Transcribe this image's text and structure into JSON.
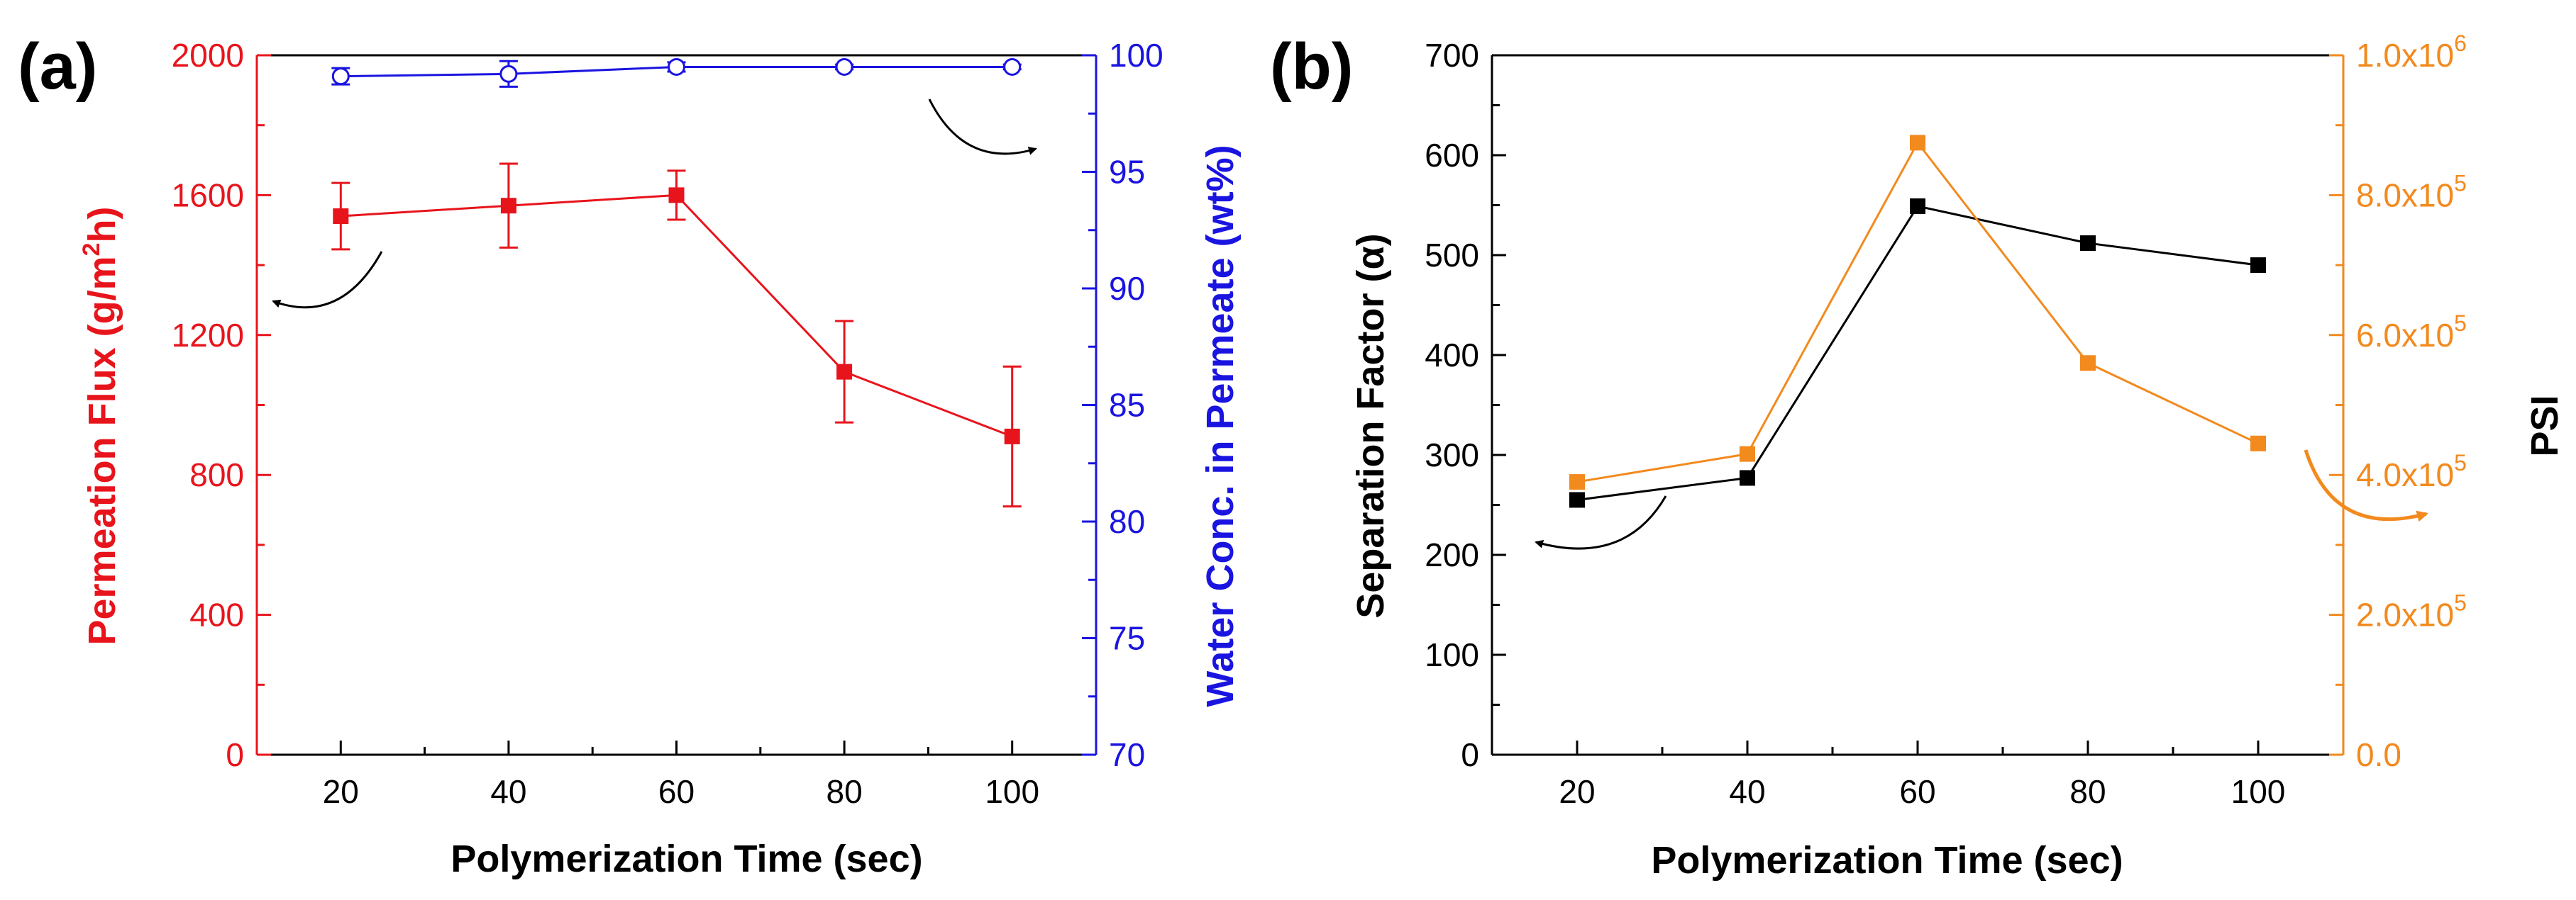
{
  "chart_data": [
    {
      "type": "line",
      "panel_label": "(a)",
      "xlabel": "Polymerization Time (sec)",
      "ylabel_left_parts": [
        "Permeation Flux (g/m",
        "2",
        "h)"
      ],
      "ylabel_right": "Water Conc. in Permeate (wt%)",
      "xlim": [
        10,
        110
      ],
      "xticks": [
        20,
        40,
        60,
        80,
        100
      ],
      "ylim_left": [
        0,
        2000
      ],
      "yticks_left": [
        0,
        400,
        800,
        1200,
        1600,
        2000
      ],
      "ylim_right": [
        70,
        100
      ],
      "yticks_right": [
        70,
        75,
        80,
        85,
        90,
        95,
        100
      ],
      "colors": {
        "left": "#e8141c",
        "right": "#1a14e0"
      },
      "x": [
        20,
        40,
        60,
        80,
        100
      ],
      "series": [
        {
          "name": "Permeation Flux",
          "axis": "left",
          "marker": "filled-square",
          "values": [
            1540,
            1570,
            1600,
            1095,
            910
          ],
          "errors": [
            95,
            120,
            70,
            145,
            200
          ]
        },
        {
          "name": "Water Conc. in Permeate",
          "axis": "right",
          "marker": "open-circle",
          "values": [
            99.1,
            99.2,
            99.5,
            99.5,
            99.5
          ],
          "errors": [
            0.35,
            0.55,
            0.2,
            0.1,
            0.1
          ]
        }
      ]
    },
    {
      "type": "line",
      "panel_label": "(b)",
      "xlabel": "Polymerization Time (sec)",
      "ylabel_left": "Separation Factor (α)",
      "ylabel_right": "PSI",
      "xlim": [
        10,
        110
      ],
      "xticks": [
        20,
        40,
        60,
        80,
        100
      ],
      "ylim_left": [
        0,
        700
      ],
      "yticks_left": [
        0,
        100,
        200,
        300,
        400,
        500,
        600,
        700
      ],
      "ylim_right": [
        0,
        1000000
      ],
      "yticks_right": [
        {
          "value": 0,
          "base": "0.0",
          "exp": ""
        },
        {
          "value": 200000,
          "base": "2.0x10",
          "exp": "5"
        },
        {
          "value": 400000,
          "base": "4.0x10",
          "exp": "5"
        },
        {
          "value": 600000,
          "base": "6.0x10",
          "exp": "5"
        },
        {
          "value": 800000,
          "base": "8.0x10",
          "exp": "5"
        },
        {
          "value": 1000000,
          "base": "1.0x10",
          "exp": "6"
        }
      ],
      "colors": {
        "left": "#000000",
        "right": "#f28a1e"
      },
      "x": [
        20,
        40,
        60,
        80,
        100
      ],
      "series": [
        {
          "name": "Separation Factor",
          "axis": "left",
          "marker": "filled-square",
          "values": [
            255,
            277,
            549,
            512,
            490
          ]
        },
        {
          "name": "PSI",
          "axis": "right",
          "marker": "filled-square",
          "values": [
            390000,
            430000,
            875000,
            560000,
            445000
          ]
        }
      ]
    }
  ]
}
